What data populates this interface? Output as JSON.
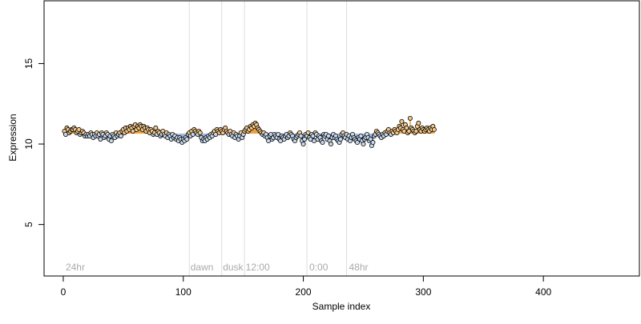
{
  "chart_data": {
    "type": "scatter",
    "title": "",
    "xlabel": "Sample index",
    "ylabel": "Expression",
    "xlim": [
      -16,
      480
    ],
    "ylim": [
      1.8,
      18.9
    ],
    "xticks": [
      0,
      100,
      200,
      300,
      400
    ],
    "yticks": [
      5,
      10,
      15
    ],
    "grid": false,
    "legend": "none",
    "colors": {
      "point_fill_low": "#c7d9ee",
      "point_fill_high": "#f3c88b",
      "bar_low": "#9db8d9",
      "bar_high": "#e89a36",
      "point_stroke": "#000000",
      "annotation": "#aaaaaa",
      "vline": "#dddddd",
      "axis": "#000000"
    },
    "baseline": 10.65,
    "annotations": [
      {
        "label": "24hr",
        "x": 2
      },
      {
        "label": "dawn",
        "x": 106
      },
      {
        "label": "dusk",
        "x": 133
      },
      {
        "label": "12:00",
        "x": 152
      },
      {
        "label": "0:00",
        "x": 205
      },
      {
        "label": "48hr",
        "x": 238
      }
    ],
    "vlines": [
      105,
      132,
      151,
      203,
      236
    ],
    "points": {
      "x_start": 1,
      "x_step": 1,
      "y": [
        10.8,
        10.6,
        11.0,
        10.9,
        10.7,
        10.8,
        10.9,
        10.9,
        11.0,
        10.9,
        10.7,
        10.8,
        10.9,
        10.6,
        10.7,
        10.8,
        10.7,
        10.5,
        10.6,
        10.5,
        10.6,
        10.5,
        10.7,
        10.6,
        10.4,
        10.6,
        10.5,
        10.7,
        10.5,
        10.6,
        10.3,
        10.7,
        10.6,
        10.4,
        10.5,
        10.7,
        10.6,
        10.3,
        10.5,
        10.2,
        10.6,
        10.5,
        10.4,
        10.7,
        10.5,
        10.6,
        10.7,
        10.5,
        10.8,
        10.9,
        10.7,
        11.0,
        10.8,
        11.0,
        10.9,
        11.1,
        11.0,
        10.8,
        11.1,
        11.2,
        10.9,
        11.1,
        11.0,
        11.2,
        11.1,
        10.9,
        11.1,
        11.0,
        10.8,
        11.0,
        10.9,
        10.7,
        10.9,
        10.8,
        10.6,
        10.7,
        11.0,
        10.6,
        10.8,
        10.7,
        10.5,
        10.6,
        10.8,
        10.6,
        10.5,
        10.7,
        10.4,
        10.6,
        10.5,
        10.3,
        10.6,
        10.4,
        10.5,
        10.3,
        10.4,
        10.2,
        10.4,
        10.3,
        10.1,
        10.3,
        10.2,
        10.4,
        10.3,
        10.6,
        10.7,
        10.5,
        10.8,
        10.6,
        10.9,
        10.8,
        10.7,
        10.6,
        10.8,
        10.7,
        10.4,
        10.2,
        10.3,
        10.2,
        10.4,
        10.3,
        10.5,
        10.4,
        10.6,
        10.5,
        10.7,
        10.8,
        10.6,
        10.9,
        10.8,
        10.7,
        10.9,
        10.8,
        10.7,
        10.9,
        11.0,
        10.8,
        10.7,
        10.6,
        10.8,
        10.6,
        10.5,
        10.7,
        10.4,
        10.6,
        10.5,
        10.3,
        10.5,
        10.7,
        10.4,
        10.6,
        10.8,
        10.9,
        11.0,
        10.8,
        10.9,
        11.1,
        11.0,
        11.2,
        11.1,
        11.3,
        11.2,
        11.0,
        10.9,
        10.8,
        10.7,
        10.6,
        10.7,
        10.5,
        10.6,
        10.4,
        10.2,
        10.5,
        10.6,
        10.3,
        10.4,
        10.6,
        10.5,
        10.4,
        10.6,
        10.3,
        10.2,
        10.5,
        10.4,
        10.3,
        10.5,
        10.6,
        10.4,
        10.5,
        10.7,
        10.6,
        10.5,
        10.3,
        10.2,
        10.4,
        10.5,
        10.6,
        10.7,
        10.5,
        10.2,
        10.0,
        10.3,
        10.6,
        10.5,
        10.7,
        10.4,
        10.3,
        10.6,
        10.5,
        10.2,
        10.7,
        10.6,
        10.3,
        10.5,
        10.4,
        10.2,
        10.1,
        10.6,
        10.5,
        10.6,
        10.3,
        10.5,
        10.2,
        10.0,
        10.4,
        10.6,
        10.4,
        10.5,
        10.3,
        10.2,
        10.1,
        10.3,
        10.6,
        10.7,
        10.5,
        10.4,
        10.6,
        10.3,
        10.5,
        10.2,
        10.4,
        10.6,
        10.4,
        10.3,
        10.2,
        10.1,
        10.4,
        10.3,
        10.5,
        10.2,
        10.0,
        10.3,
        10.4,
        10.6,
        10.4,
        10.2,
        10.3,
        9.9,
        10.1,
        10.5,
        10.6,
        10.8,
        10.7,
        10.6,
        10.5,
        10.4,
        10.6,
        10.5,
        10.7,
        10.6,
        10.8,
        10.9,
        10.7,
        10.6,
        10.8,
        10.7,
        10.9,
        10.8,
        10.7,
        10.9,
        11.1,
        11.0,
        11.4,
        10.9,
        10.8,
        11.2,
        11.0,
        10.7,
        10.8,
        11.6,
        11.0,
        10.9,
        10.8,
        10.7,
        10.8,
        11.1,
        11.3,
        10.9,
        10.8,
        11.0,
        10.9,
        10.8,
        10.9,
        11.0,
        10.9,
        10.8,
        11.0,
        10.9,
        11.1,
        10.9
      ]
    }
  }
}
